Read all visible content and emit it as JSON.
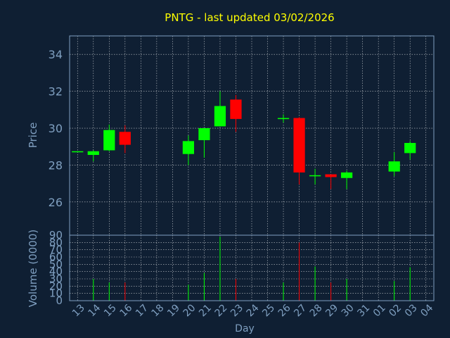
{
  "chart_data": {
    "type": "candlestick",
    "title": "PNTG - last updated 03/02/2026",
    "xlabel": "Day",
    "ylabel_price": "Price",
    "ylabel_volume": "Volume (0000)",
    "grid": true,
    "price_ylim": [
      24.2,
      35.0
    ],
    "price_ticks": [
      26,
      28,
      30,
      32,
      34
    ],
    "volume_ylim": [
      0,
      90
    ],
    "volume_ticks": [
      0,
      10,
      20,
      30,
      40,
      50,
      60,
      70,
      80,
      90
    ],
    "x_ticks": [
      "13",
      "14",
      "15",
      "16",
      "17",
      "18",
      "19",
      "20",
      "21",
      "22",
      "23",
      "24",
      "25",
      "26",
      "27",
      "28",
      "29",
      "30",
      "31",
      "01",
      "02",
      "03",
      "04"
    ],
    "colors": {
      "background": "#0f1f33",
      "up": "#00ff00",
      "down": "#ff0000",
      "axis": "#7f9fc0",
      "grid": "#ffffff",
      "title": "#ffff00"
    },
    "candles": [
      {
        "x": "13",
        "open": 28.75,
        "high": 28.75,
        "low": 28.75,
        "close": 28.75,
        "volume": 0
      },
      {
        "x": "14",
        "open": 28.55,
        "high": 28.8,
        "low": 28.2,
        "close": 28.75,
        "volume": 30
      },
      {
        "x": "15",
        "open": 28.8,
        "high": 30.2,
        "low": 28.75,
        "close": 29.9,
        "volume": 25
      },
      {
        "x": "16",
        "open": 29.8,
        "high": 30.15,
        "low": 28.65,
        "close": 29.1,
        "volume": 25
      },
      {
        "x": "20",
        "open": 28.6,
        "high": 29.6,
        "low": 28.0,
        "close": 29.3,
        "volume": 22
      },
      {
        "x": "21",
        "open": 29.35,
        "high": 30.0,
        "low": 28.4,
        "close": 30.0,
        "volume": 38
      },
      {
        "x": "22",
        "open": 30.1,
        "high": 32.0,
        "low": 30.1,
        "close": 31.2,
        "volume": 88
      },
      {
        "x": "23",
        "open": 31.55,
        "high": 31.8,
        "low": 29.8,
        "close": 30.5,
        "volume": 30
      },
      {
        "x": "26",
        "open": 30.55,
        "high": 30.75,
        "low": 30.3,
        "close": 30.55,
        "volume": 25
      },
      {
        "x": "27",
        "open": 30.55,
        "high": 30.6,
        "low": 26.95,
        "close": 27.6,
        "volume": 80
      },
      {
        "x": "28",
        "open": 27.45,
        "high": 27.8,
        "low": 26.95,
        "close": 27.45,
        "volume": 47
      },
      {
        "x": "29",
        "open": 27.5,
        "high": 27.5,
        "low": 26.7,
        "close": 27.35,
        "volume": 25
      },
      {
        "x": "30",
        "open": 27.3,
        "high": 27.7,
        "low": 26.7,
        "close": 27.6,
        "volume": 30
      },
      {
        "x": "02",
        "open": 27.65,
        "high": 28.7,
        "low": 27.4,
        "close": 28.2,
        "volume": 27
      },
      {
        "x": "03",
        "open": 28.65,
        "high": 29.3,
        "low": 28.3,
        "close": 29.2,
        "volume": 46
      }
    ]
  }
}
